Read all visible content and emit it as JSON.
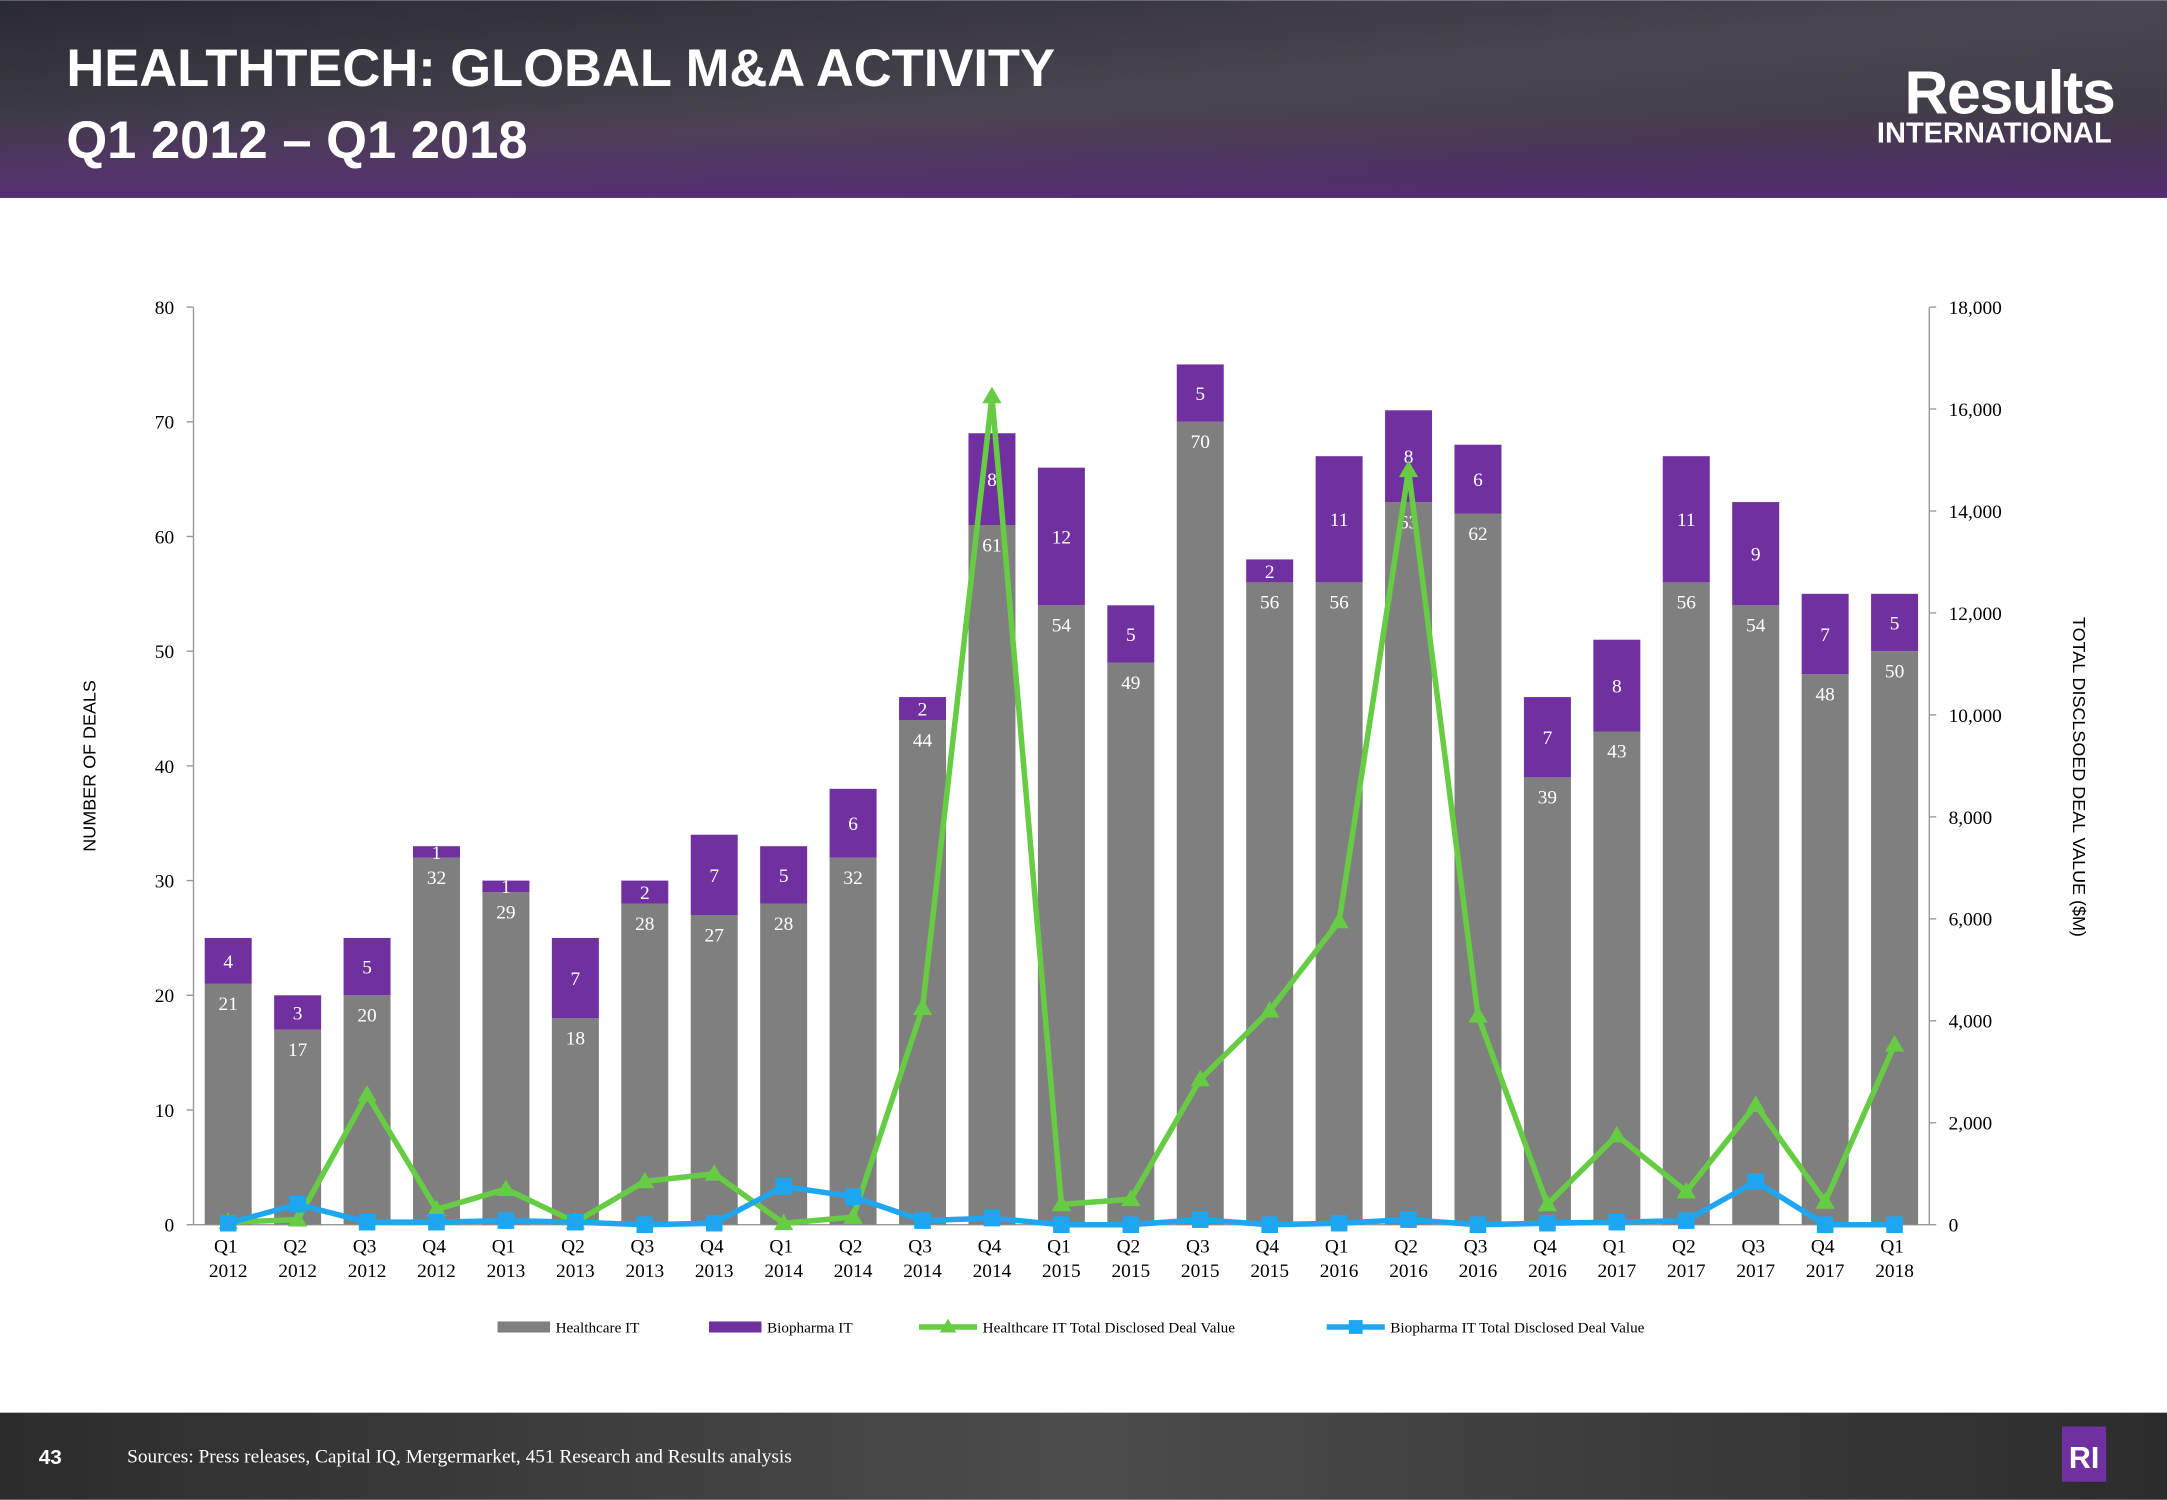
{
  "slide": {
    "title": [
      "HEALTHTECH: GLOBAL M&A ACTIVITY",
      "Q1 2012 – Q1 2018"
    ],
    "logo": [
      "Results",
      "INTERNATIONAL"
    ],
    "page_number": "43",
    "sources": "Sources: Press releases, Capital IQ, Mergermarket, 451 Research and Results analysis",
    "badge": "RI"
  },
  "chart_data": {
    "type": "bar",
    "stacked": true,
    "y_label": "NUMBER OF DEALS",
    "y2_label": "TOTAL DISCLSOED DEAL VALUE ($M)",
    "categories": [
      "Q1 2012",
      "Q2 2012",
      "Q3 2012",
      "Q4 2012",
      "Q1 2013",
      "Q2 2013",
      "Q3 2013",
      "Q4 2013",
      "Q1 2014",
      "Q2 2014",
      "Q3 2014",
      "Q4 2014",
      "Q1 2015",
      "Q2 2015",
      "Q3 2015",
      "Q4 2015",
      "Q1 2016",
      "Q2 2016",
      "Q3 2016",
      "Q4 2016",
      "Q1 2017",
      "Q2 2017",
      "Q3 2017",
      "Q4 2017",
      "Q1 2018"
    ],
    "ylim": [
      0,
      80
    ],
    "yticks": [
      0,
      10,
      20,
      30,
      40,
      50,
      60,
      70,
      80
    ],
    "y2lim": [
      0,
      18000
    ],
    "y2ticks": [
      0,
      {
        "value": 2000,
        "label": "2,000"
      },
      {
        "value": 4000,
        "label": "4,000"
      },
      {
        "value": 6000,
        "label": "6,000"
      },
      {
        "value": 8000,
        "label": "8,000"
      },
      {
        "value": 10000,
        "label": "10,000"
      },
      {
        "value": 12000,
        "label": "12,000"
      },
      {
        "value": 14000,
        "label": "14,000"
      },
      {
        "value": 16000,
        "label": "16,000"
      },
      {
        "value": 18000,
        "label": "18,000"
      }
    ],
    "series": [
      {
        "name": "Healthcare IT",
        "type": "bar",
        "color": "#7f7f7f",
        "values": [
          21,
          17,
          20,
          32,
          29,
          18,
          28,
          27,
          28,
          32,
          44,
          61,
          54,
          49,
          70,
          56,
          56,
          63,
          62,
          39,
          43,
          56,
          54,
          48,
          50
        ]
      },
      {
        "name": "Biopharma IT",
        "type": "bar",
        "color": "#7030a0",
        "values": [
          4,
          3,
          5,
          1,
          1,
          7,
          2,
          7,
          5,
          6,
          2,
          8,
          12,
          5,
          5,
          2,
          11,
          8,
          6,
          7,
          8,
          11,
          9,
          7,
          5
        ]
      },
      {
        "name": "Healthcare IT Total Disclosed Deal Value",
        "type": "line",
        "axis": "y2",
        "color": "#66cc44",
        "marker": "triangle",
        "values": [
          50,
          100,
          2550,
          300,
          700,
          50,
          850,
          1000,
          30,
          150,
          4250,
          16250,
          400,
          500,
          2850,
          4200,
          5950,
          14800,
          4100,
          400,
          1750,
          650,
          2350,
          450,
          3530
        ]
      },
      {
        "name": "Biopharma IT Total Disclosed Deal Value",
        "type": "line",
        "axis": "y2",
        "color": "#1ea7f0",
        "marker": "square",
        "values": [
          30,
          400,
          50,
          50,
          80,
          50,
          0,
          30,
          750,
          550,
          80,
          130,
          0,
          0,
          100,
          0,
          30,
          100,
          0,
          30,
          50,
          80,
          850,
          0,
          0
        ]
      }
    ]
  }
}
